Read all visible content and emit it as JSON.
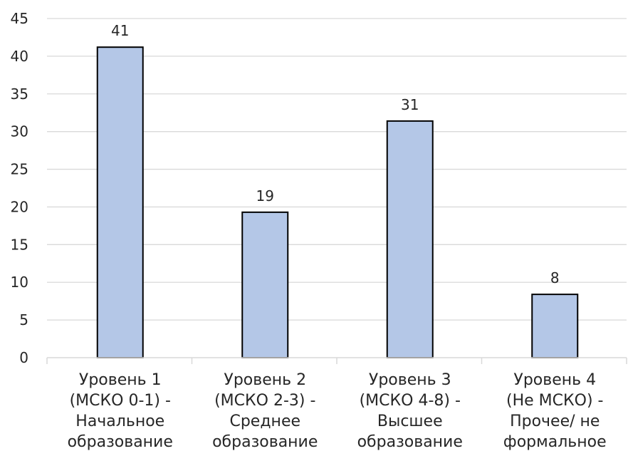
{
  "chart_data": {
    "type": "bar",
    "title": "",
    "xlabel": "",
    "ylabel": "",
    "ylim": [
      0,
      45
    ],
    "yticks": [
      0,
      5,
      10,
      15,
      20,
      25,
      30,
      35,
      40,
      45
    ],
    "grid": true,
    "legend": "none",
    "categories": [
      [
        "Уровень 1",
        "(МСКО 0-1) -",
        "Начальное",
        "образование"
      ],
      [
        "Уровень 2",
        "(МСКО 2-3) -",
        "Среднее",
        "образование"
      ],
      [
        "Уровень 3",
        "(МСКО 4-8) -",
        "Высшее",
        "образование"
      ],
      [
        "Уровень 4",
        "(Не МСКО) -",
        "Прочее/ не",
        "формальное"
      ]
    ],
    "values": [
      41.2,
      19.3,
      31.4,
      8.4
    ],
    "data_labels": [
      "41",
      "19",
      "31",
      "8"
    ],
    "bar_color": "#b4c7e7",
    "bar_outline": "#000000",
    "grid_color": "#d9d9d9"
  }
}
